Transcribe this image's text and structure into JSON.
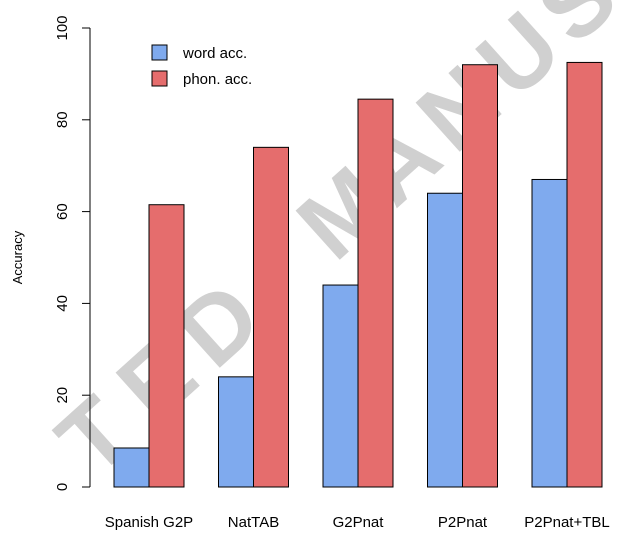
{
  "chart_data": {
    "type": "bar",
    "categories": [
      "Spanish G2P",
      "NatTAB",
      "G2Pnat",
      "P2Pnat",
      "P2Pnat+TBL"
    ],
    "series": [
      {
        "name": "word acc.",
        "values": [
          8.5,
          24,
          44,
          64,
          67
        ]
      },
      {
        "name": "phon. acc.",
        "values": [
          61.5,
          74,
          84.5,
          92,
          92.5
        ]
      }
    ],
    "ylabel": "Accuracy",
    "xlabel": "",
    "ylim": [
      0,
      100
    ],
    "yticks": [
      0,
      20,
      40,
      60,
      80,
      100
    ],
    "grid": false,
    "legend_position": "top-left",
    "colors": {
      "word acc.": "#7faaee",
      "phon. acc.": "#e56d6d"
    }
  },
  "watermark": {
    "text": "TED MANUS"
  }
}
